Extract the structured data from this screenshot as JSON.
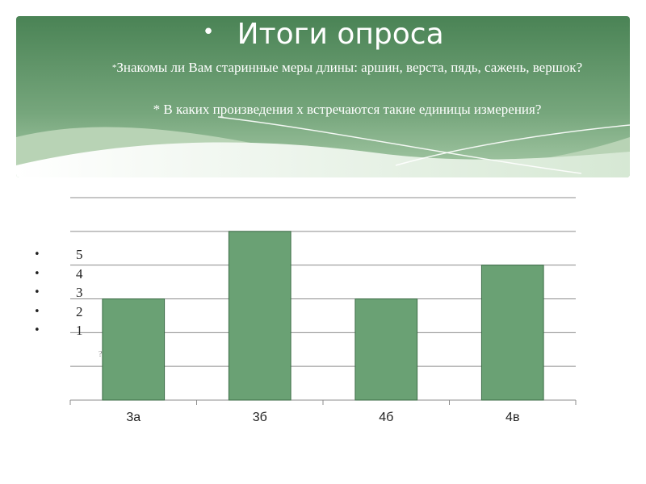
{
  "slide": {
    "bullet": "•",
    "title": "Итоги опроса",
    "question1_star": "*",
    "question1": "Знакомы ли Вам старинные меры длины: аршин, верста,  пядь, сажень, вершок?",
    "question2": "* В каких произведения х  встречаются такие единицы измерения?",
    "stray_mark": "?"
  },
  "left_list": {
    "items": [
      "5",
      "4",
      "3",
      "2",
      "1"
    ]
  },
  "colors": {
    "banner_dark": "#4e8a5a",
    "banner_light": "#c9dfc9",
    "bar_fill": "#6aa174",
    "bar_stroke": "#3b6b45",
    "gridline": "#8c8c8c"
  },
  "chart_data": {
    "type": "bar",
    "categories": [
      "3а",
      "3б",
      "4б",
      "4в"
    ],
    "values": [
      3,
      5,
      3,
      4
    ],
    "ylim": [
      0,
      6
    ],
    "grid": true,
    "title": "",
    "xlabel": "",
    "ylabel": ""
  }
}
